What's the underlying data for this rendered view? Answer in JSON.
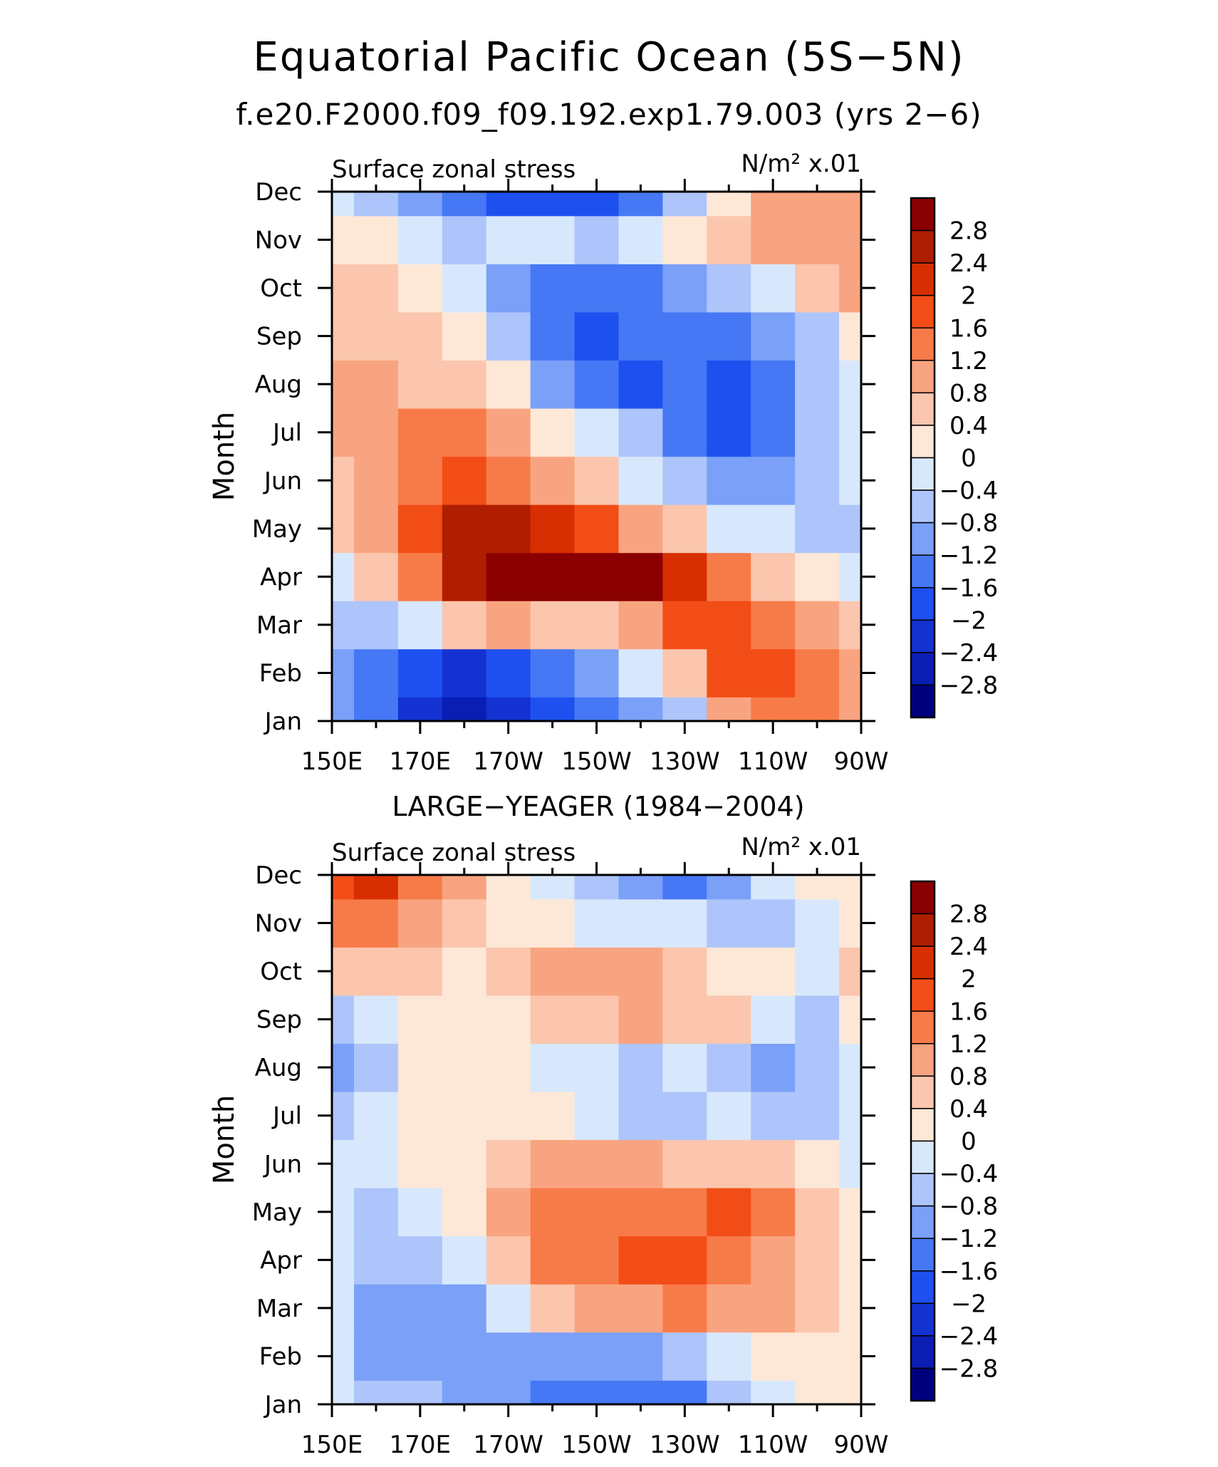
{
  "titles": {
    "main": "Equatorial Pacific Ocean (5S−5N)",
    "case": "f.e20.F2000.f09_f09.192.exp1.79.003 (yrs 2−6)"
  },
  "chart_data": [
    {
      "type": "heatmap",
      "panel_title": "",
      "left_label": "Surface zonal stress",
      "right_label": "N/m² x.01",
      "ylabel": "Month",
      "x": [
        "150E",
        "160E",
        "170E",
        "180",
        "170W",
        "160W",
        "150W",
        "140W",
        "130W",
        "120W",
        "110W",
        "100W",
        "90W"
      ],
      "x_tick_labels": [
        "150E",
        "170E",
        "170W",
        "150W",
        "130W",
        "110W",
        "90W"
      ],
      "y": [
        "Jan",
        "Feb",
        "Mar",
        "Apr",
        "May",
        "Jun",
        "Jul",
        "Aug",
        "Sep",
        "Oct",
        "Nov",
        "Dec"
      ],
      "z": [
        [
          -1.2,
          -1.6,
          -2.4,
          -2.8,
          -2.4,
          -2.0,
          -1.6,
          -1.2,
          -0.8,
          0.8,
          1.2,
          1.2,
          0.8
        ],
        [
          -1.2,
          -1.6,
          -2.0,
          -2.4,
          -2.0,
          -1.6,
          -1.2,
          -0.4,
          0.4,
          1.6,
          1.6,
          1.2,
          0.8
        ],
        [
          -0.8,
          -0.8,
          -0.4,
          0.4,
          0.8,
          0.4,
          0.4,
          0.8,
          1.6,
          1.6,
          1.2,
          0.8,
          0.4
        ],
        [
          -0.4,
          0.4,
          1.2,
          2.4,
          3.0,
          3.0,
          3.0,
          2.8,
          2.0,
          1.2,
          0.4,
          0.0,
          -0.4
        ],
        [
          0.4,
          0.8,
          1.6,
          2.4,
          2.4,
          2.0,
          1.6,
          0.8,
          0.4,
          -0.4,
          -0.4,
          -0.8,
          -0.8
        ],
        [
          0.4,
          0.8,
          1.2,
          1.6,
          1.2,
          0.8,
          0.4,
          -0.4,
          -0.8,
          -1.2,
          -1.2,
          -0.8,
          -0.4
        ],
        [
          0.8,
          0.8,
          1.2,
          1.2,
          0.8,
          0.0,
          -0.4,
          -0.8,
          -1.6,
          -2.0,
          -1.6,
          -0.8,
          -0.4
        ],
        [
          0.8,
          0.8,
          0.4,
          0.4,
          0.0,
          -1.2,
          -1.6,
          -2.0,
          -1.6,
          -2.0,
          -1.6,
          -0.8,
          -0.4
        ],
        [
          0.4,
          0.4,
          0.4,
          0.0,
          -0.8,
          -1.6,
          -2.0,
          -1.6,
          -1.6,
          -1.6,
          -1.2,
          -0.8,
          0.0
        ],
        [
          0.4,
          0.4,
          0.0,
          -0.4,
          -1.2,
          -1.6,
          -1.6,
          -1.6,
          -1.2,
          -0.8,
          -0.4,
          0.4,
          0.8
        ],
        [
          0.0,
          0.0,
          -0.4,
          -0.8,
          -0.4,
          -0.4,
          -0.8,
          -0.4,
          0.0,
          0.4,
          0.8,
          0.8,
          0.8
        ],
        [
          -0.4,
          -0.8,
          -1.2,
          -1.6,
          -2.0,
          -2.0,
          -2.0,
          -1.6,
          -0.8,
          0.0,
          0.8,
          0.8,
          0.8
        ]
      ],
      "levels": [
        -2.8,
        -2.4,
        -2.0,
        -1.6,
        -1.2,
        -0.8,
        -0.4,
        0,
        0.4,
        0.8,
        1.2,
        1.6,
        2.0,
        2.4,
        2.8
      ],
      "level_labels": [
        "2.8",
        "2.4",
        "2",
        "1.6",
        "1.2",
        "0.8",
        "0.4",
        "0",
        "−0.4",
        "−0.8",
        "−1.2",
        "−1.6",
        "−2",
        "−2.4",
        "−2.8"
      ],
      "colors": [
        "#00007f",
        "#0a1eb4",
        "#1432d2",
        "#1e50f0",
        "#4678f5",
        "#7ba0f8",
        "#adc5fa",
        "#d8e8fc",
        "#fde8d7",
        "#fbc6ad",
        "#f9a480",
        "#f77b49",
        "#f24d17",
        "#d82f02",
        "#b01e01",
        "#8a0000"
      ]
    },
    {
      "type": "heatmap",
      "panel_title": "LARGE−YEAGER (1984−2004)",
      "left_label": "Surface zonal stress",
      "right_label": "N/m² x.01",
      "ylabel": "Month",
      "x": [
        "150E",
        "160E",
        "170E",
        "180",
        "170W",
        "160W",
        "150W",
        "140W",
        "130W",
        "120W",
        "110W",
        "100W",
        "90W"
      ],
      "x_tick_labels": [
        "150E",
        "170E",
        "170W",
        "150W",
        "130W",
        "110W",
        "90W"
      ],
      "y": [
        "Jan",
        "Feb",
        "Mar",
        "Apr",
        "May",
        "Jun",
        "Jul",
        "Aug",
        "Sep",
        "Oct",
        "Nov",
        "Dec"
      ],
      "z": [
        [
          -0.4,
          -0.8,
          -0.8,
          -1.2,
          -1.2,
          -1.6,
          -1.6,
          -1.6,
          -1.6,
          -0.8,
          -0.4,
          0.0,
          0.0
        ],
        [
          -0.4,
          -1.2,
          -1.2,
          -1.2,
          -1.2,
          -1.2,
          -1.2,
          -1.2,
          -0.8,
          -0.4,
          0.0,
          0.0,
          0.0
        ],
        [
          -0.4,
          -1.2,
          -1.2,
          -1.2,
          -0.4,
          0.4,
          0.8,
          0.8,
          1.2,
          0.8,
          0.8,
          0.4,
          0.0
        ],
        [
          -0.4,
          -0.8,
          -0.8,
          -0.4,
          0.4,
          1.2,
          1.2,
          1.6,
          1.6,
          1.2,
          0.8,
          0.4,
          0.0
        ],
        [
          -0.4,
          -0.8,
          -0.4,
          0.0,
          0.8,
          1.2,
          1.2,
          1.2,
          1.2,
          1.6,
          1.2,
          0.4,
          0.0
        ],
        [
          -0.4,
          -0.4,
          0.0,
          0.0,
          0.4,
          0.8,
          0.8,
          0.8,
          0.4,
          0.4,
          0.4,
          0.0,
          -0.4
        ],
        [
          -0.8,
          -0.4,
          0.0,
          0.0,
          0.0,
          0.0,
          -0.4,
          -0.8,
          -0.8,
          -0.4,
          -0.8,
          -0.8,
          -0.4
        ],
        [
          -1.2,
          -0.8,
          0.0,
          0.0,
          0.0,
          -0.4,
          -0.4,
          -0.8,
          -0.4,
          -0.8,
          -1.2,
          -0.8,
          -0.4
        ],
        [
          -0.8,
          -0.4,
          0.0,
          0.0,
          0.0,
          0.4,
          0.4,
          0.8,
          0.4,
          0.4,
          -0.4,
          -0.8,
          0.0
        ],
        [
          0.4,
          0.4,
          0.4,
          0.0,
          0.4,
          0.8,
          0.8,
          0.8,
          0.4,
          0.0,
          0.0,
          -0.4,
          0.4
        ],
        [
          1.2,
          1.2,
          0.8,
          0.4,
          0.0,
          0.0,
          -0.4,
          -0.4,
          -0.4,
          -0.8,
          -0.8,
          -0.4,
          0.0
        ],
        [
          1.6,
          2.0,
          1.2,
          0.8,
          0.0,
          -0.4,
          -0.8,
          -1.2,
          -1.6,
          -1.2,
          -0.4,
          0.0,
          0.0
        ]
      ],
      "levels": [
        -2.8,
        -2.4,
        -2.0,
        -1.6,
        -1.2,
        -0.8,
        -0.4,
        0,
        0.4,
        0.8,
        1.2,
        1.6,
        2.0,
        2.4,
        2.8
      ],
      "level_labels": [
        "2.8",
        "2.4",
        "2",
        "1.6",
        "1.2",
        "0.8",
        "0.4",
        "0",
        "−0.4",
        "−0.8",
        "−1.2",
        "−1.6",
        "−2",
        "−2.4",
        "−2.8"
      ],
      "colors": [
        "#00007f",
        "#0a1eb4",
        "#1432d2",
        "#1e50f0",
        "#4678f5",
        "#7ba0f8",
        "#adc5fa",
        "#d8e8fc",
        "#fde8d7",
        "#fbc6ad",
        "#f9a480",
        "#f77b49",
        "#f24d17",
        "#d82f02",
        "#b01e01",
        "#8a0000"
      ]
    }
  ]
}
